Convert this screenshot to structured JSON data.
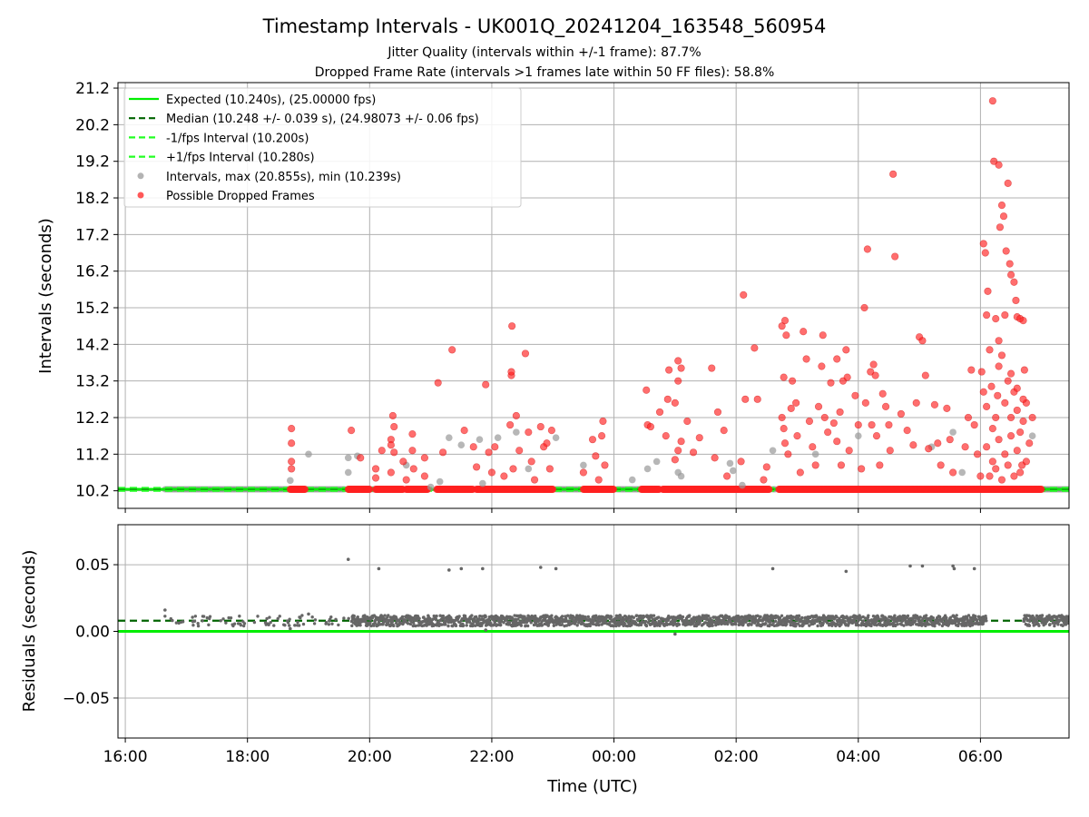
{
  "title": "Timestamp Intervals - UK001Q_20241204_163548_560954",
  "subtitle_1": "Jitter Quality (intervals within +/-1 frame): 87.7%",
  "subtitle_2": "Dropped Frame Rate (intervals >1 frames late within 50 FF files): 58.8%",
  "colors": {
    "expected": "#00ee00",
    "median": "#006400",
    "fps_band": "#22ff22",
    "intervals": "#999999",
    "dropped": "#ff2020",
    "residual_points": "#666666",
    "grid": "#b0b0b0"
  },
  "chart_data": [
    {
      "type": "scatter",
      "name": "intervals-panel",
      "xlabel": "",
      "ylabel": "Intervals (seconds)",
      "x_range_hours": [
        15.88,
        31.45
      ],
      "x_ticks": [
        "16:00",
        "18:00",
        "20:00",
        "22:00",
        "00:00",
        "02:00",
        "04:00",
        "06:00"
      ],
      "x_tick_hours": [
        16,
        18,
        20,
        22,
        24,
        26,
        28,
        30
      ],
      "ylim": [
        9.72,
        21.35
      ],
      "y_ticks": [
        10.2,
        11.2,
        12.2,
        13.2,
        14.2,
        15.2,
        16.2,
        17.2,
        18.2,
        19.2,
        20.2,
        21.2
      ],
      "y_tick_labels": [
        "10.2",
        "11.2",
        "12.2",
        "13.2",
        "14.2",
        "15.2",
        "16.2",
        "17.2",
        "18.2",
        "19.2",
        "20.2",
        "21.2"
      ],
      "grid": true,
      "legend_position": "upper-left",
      "legend": [
        {
          "label": "Expected (10.240s), (25.00000 fps)",
          "style": "solid",
          "color": "#00ee00"
        },
        {
          "label": "Median (10.248 +/- 0.039 s), (24.98073 +/- 0.06 fps)",
          "style": "dashed",
          "color": "#006400"
        },
        {
          "label": "-1/fps Interval (10.200s)",
          "style": "dashed",
          "color": "#22ff22"
        },
        {
          "label": "+1/fps Interval (10.280s)",
          "style": "dashed",
          "color": "#22ff22"
        },
        {
          "label": "Intervals, max (20.855s), min (10.239s)",
          "style": "marker",
          "color": "#999999"
        },
        {
          "label": "Possible Dropped Frames",
          "style": "marker",
          "color": "#ff2020"
        }
      ],
      "reference_lines": [
        {
          "name": "Expected",
          "y": 10.24
        },
        {
          "name": "Median",
          "y": 10.248
        },
        {
          "name": "-1/fps Interval",
          "y": 10.2
        },
        {
          "name": "+1/fps Interval",
          "y": 10.28
        }
      ],
      "baseline_segments": [
        [
          16.65,
          18.7
        ],
        [
          18.95,
          19.6
        ],
        [
          20.05,
          20.1
        ],
        [
          23.05,
          23.45
        ],
        [
          24.05,
          24.45
        ],
        [
          26.6,
          26.65
        ],
        [
          31.0,
          31.45
        ]
      ],
      "dropped_baseline_segments": [
        [
          18.7,
          18.95
        ],
        [
          19.65,
          20.0
        ],
        [
          20.1,
          20.55
        ],
        [
          20.6,
          20.95
        ],
        [
          21.1,
          21.7
        ],
        [
          21.75,
          23.0
        ],
        [
          23.5,
          24.0
        ],
        [
          24.45,
          24.75
        ],
        [
          24.8,
          26.55
        ],
        [
          26.7,
          31.0
        ]
      ],
      "intervals_points": [
        [
          18.7,
          10.48
        ],
        [
          19.0,
          11.2
        ],
        [
          19.65,
          11.1
        ],
        [
          19.65,
          10.7
        ],
        [
          19.8,
          11.15
        ],
        [
          20.6,
          10.9
        ],
        [
          21.0,
          10.3
        ],
        [
          21.15,
          10.45
        ],
        [
          21.3,
          11.65
        ],
        [
          21.5,
          11.45
        ],
        [
          21.8,
          11.6
        ],
        [
          21.85,
          10.4
        ],
        [
          22.1,
          11.65
        ],
        [
          22.4,
          11.8
        ],
        [
          22.6,
          10.8
        ],
        [
          23.05,
          11.65
        ],
        [
          23.5,
          10.9
        ],
        [
          24.3,
          10.5
        ],
        [
          24.55,
          10.8
        ],
        [
          24.7,
          11.0
        ],
        [
          25.05,
          10.7
        ],
        [
          25.1,
          10.6
        ],
        [
          25.9,
          10.95
        ],
        [
          25.95,
          10.75
        ],
        [
          26.1,
          10.35
        ],
        [
          26.6,
          11.3
        ],
        [
          27.3,
          11.2
        ],
        [
          28.0,
          11.7
        ],
        [
          29.2,
          11.4
        ],
        [
          29.55,
          11.8
        ],
        [
          29.7,
          10.7
        ],
        [
          30.85,
          11.7
        ]
      ],
      "dropped_points": [
        [
          18.72,
          11.9
        ],
        [
          18.72,
          11.5
        ],
        [
          18.72,
          11.0
        ],
        [
          18.72,
          10.8
        ],
        [
          19.7,
          11.85
        ],
        [
          19.85,
          11.1
        ],
        [
          20.1,
          10.8
        ],
        [
          20.1,
          10.55
        ],
        [
          20.2,
          11.3
        ],
        [
          20.35,
          11.6
        ],
        [
          20.35,
          10.7
        ],
        [
          20.4,
          11.25
        ],
        [
          20.35,
          11.45
        ],
        [
          20.4,
          11.95
        ],
        [
          20.38,
          12.25
        ],
        [
          20.55,
          11.0
        ],
        [
          20.6,
          10.5
        ],
        [
          20.7,
          11.75
        ],
        [
          20.7,
          11.3
        ],
        [
          20.72,
          10.8
        ],
        [
          20.9,
          11.1
        ],
        [
          20.9,
          10.6
        ],
        [
          21.12,
          13.15
        ],
        [
          21.2,
          11.25
        ],
        [
          21.35,
          14.05
        ],
        [
          21.55,
          11.85
        ],
        [
          21.7,
          11.4
        ],
        [
          21.75,
          10.85
        ],
        [
          21.95,
          11.25
        ],
        [
          21.9,
          13.1
        ],
        [
          22.0,
          10.7
        ],
        [
          22.05,
          11.4
        ],
        [
          22.2,
          10.6
        ],
        [
          22.3,
          12.0
        ],
        [
          22.32,
          13.35
        ],
        [
          22.32,
          13.45
        ],
        [
          22.33,
          14.7
        ],
        [
          22.35,
          10.8
        ],
        [
          22.4,
          12.25
        ],
        [
          22.45,
          11.3
        ],
        [
          22.55,
          13.95
        ],
        [
          22.6,
          11.8
        ],
        [
          22.65,
          11.0
        ],
        [
          22.7,
          10.5
        ],
        [
          22.8,
          11.95
        ],
        [
          22.85,
          11.4
        ],
        [
          22.9,
          11.5
        ],
        [
          22.95,
          10.8
        ],
        [
          22.98,
          11.85
        ],
        [
          23.5,
          10.7
        ],
        [
          23.65,
          11.6
        ],
        [
          23.7,
          11.15
        ],
        [
          23.75,
          10.5
        ],
        [
          23.8,
          11.7
        ],
        [
          23.82,
          12.1
        ],
        [
          23.85,
          10.9
        ],
        [
          24.53,
          12.95
        ],
        [
          24.55,
          12.0
        ],
        [
          24.6,
          11.95
        ],
        [
          24.75,
          12.35
        ],
        [
          24.85,
          11.7
        ],
        [
          24.88,
          12.7
        ],
        [
          24.9,
          13.5
        ],
        [
          25.0,
          12.6
        ],
        [
          25.05,
          13.2
        ],
        [
          25.05,
          13.75
        ],
        [
          25.1,
          13.55
        ],
        [
          25.05,
          11.3
        ],
        [
          25.1,
          11.55
        ],
        [
          25.0,
          11.05
        ],
        [
          25.2,
          12.1
        ],
        [
          25.3,
          11.25
        ],
        [
          25.4,
          11.65
        ],
        [
          25.6,
          13.55
        ],
        [
          25.7,
          12.35
        ],
        [
          25.65,
          11.1
        ],
        [
          25.8,
          11.85
        ],
        [
          25.85,
          10.6
        ],
        [
          26.08,
          11.0
        ],
        [
          26.12,
          15.55
        ],
        [
          26.15,
          12.7
        ],
        [
          26.3,
          14.1
        ],
        [
          26.35,
          12.7
        ],
        [
          26.45,
          10.5
        ],
        [
          26.5,
          10.85
        ],
        [
          26.75,
          14.7
        ],
        [
          26.78,
          13.3
        ],
        [
          26.8,
          14.85
        ],
        [
          26.82,
          14.45
        ],
        [
          26.75,
          12.2
        ],
        [
          26.78,
          11.9
        ],
        [
          26.8,
          11.5
        ],
        [
          26.85,
          11.2
        ],
        [
          26.9,
          12.45
        ],
        [
          26.92,
          13.2
        ],
        [
          26.98,
          12.6
        ],
        [
          27.0,
          11.7
        ],
        [
          27.05,
          10.7
        ],
        [
          27.1,
          14.55
        ],
        [
          27.15,
          13.8
        ],
        [
          27.2,
          12.1
        ],
        [
          27.25,
          11.4
        ],
        [
          27.3,
          10.9
        ],
        [
          27.35,
          12.5
        ],
        [
          27.4,
          13.6
        ],
        [
          27.42,
          14.45
        ],
        [
          27.45,
          12.2
        ],
        [
          27.5,
          11.8
        ],
        [
          27.55,
          13.15
        ],
        [
          27.6,
          12.05
        ],
        [
          27.65,
          13.8
        ],
        [
          27.65,
          11.55
        ],
        [
          27.7,
          12.35
        ],
        [
          27.72,
          10.9
        ],
        [
          27.75,
          13.2
        ],
        [
          27.8,
          14.05
        ],
        [
          27.82,
          13.3
        ],
        [
          27.85,
          11.3
        ],
        [
          27.95,
          12.8
        ],
        [
          28.0,
          12.0
        ],
        [
          28.05,
          10.8
        ],
        [
          28.1,
          15.2
        ],
        [
          28.12,
          12.6
        ],
        [
          28.15,
          16.8
        ],
        [
          28.2,
          13.45
        ],
        [
          28.22,
          12.0
        ],
        [
          28.25,
          13.65
        ],
        [
          28.28,
          13.35
        ],
        [
          28.3,
          11.7
        ],
        [
          28.35,
          10.9
        ],
        [
          28.4,
          12.85
        ],
        [
          28.45,
          12.5
        ],
        [
          28.5,
          12.0
        ],
        [
          28.52,
          11.3
        ],
        [
          28.57,
          18.85
        ],
        [
          28.6,
          16.6
        ],
        [
          28.7,
          12.3
        ],
        [
          28.8,
          11.85
        ],
        [
          28.9,
          11.45
        ],
        [
          28.95,
          12.6
        ],
        [
          29.0,
          14.4
        ],
        [
          29.05,
          14.3
        ],
        [
          29.1,
          13.35
        ],
        [
          29.15,
          11.35
        ],
        [
          29.25,
          12.55
        ],
        [
          29.3,
          11.5
        ],
        [
          29.35,
          10.9
        ],
        [
          29.45,
          12.45
        ],
        [
          29.5,
          11.6
        ],
        [
          29.55,
          10.7
        ],
        [
          29.75,
          11.4
        ],
        [
          29.8,
          12.2
        ],
        [
          29.85,
          13.5
        ],
        [
          29.9,
          12.0
        ],
        [
          29.95,
          11.2
        ],
        [
          30.0,
          10.6
        ],
        [
          30.02,
          13.45
        ],
        [
          30.05,
          16.95
        ],
        [
          30.08,
          16.7
        ],
        [
          30.1,
          15.0
        ],
        [
          30.12,
          15.65
        ],
        [
          30.15,
          14.05
        ],
        [
          30.18,
          13.05
        ],
        [
          30.2,
          20.85
        ],
        [
          30.22,
          19.2
        ],
        [
          30.25,
          12.2
        ],
        [
          30.3,
          19.1
        ],
        [
          30.32,
          17.4
        ],
        [
          30.35,
          18.0
        ],
        [
          30.38,
          17.7
        ],
        [
          30.42,
          16.75
        ],
        [
          30.45,
          18.6
        ],
        [
          30.48,
          16.4
        ],
        [
          30.5,
          16.1
        ],
        [
          30.55,
          15.9
        ],
        [
          30.58,
          15.4
        ],
        [
          30.6,
          14.95
        ],
        [
          30.65,
          14.9
        ],
        [
          30.7,
          14.85
        ],
        [
          30.4,
          15.0
        ],
        [
          30.3,
          14.3
        ],
        [
          30.35,
          13.9
        ],
        [
          30.45,
          13.2
        ],
        [
          30.05,
          12.9
        ],
        [
          30.1,
          12.5
        ],
        [
          30.2,
          11.9
        ],
        [
          30.28,
          12.8
        ],
        [
          30.4,
          12.6
        ],
        [
          30.5,
          12.2
        ],
        [
          30.55,
          12.9
        ],
        [
          30.6,
          12.4
        ],
        [
          30.65,
          11.8
        ],
        [
          30.7,
          12.1
        ],
        [
          30.72,
          13.5
        ],
        [
          30.1,
          11.4
        ],
        [
          30.2,
          11.0
        ],
        [
          30.3,
          11.6
        ],
        [
          30.4,
          11.2
        ],
        [
          30.5,
          11.7
        ],
        [
          30.6,
          11.3
        ],
        [
          30.68,
          10.9
        ],
        [
          30.75,
          12.6
        ],
        [
          30.8,
          11.5
        ],
        [
          30.85,
          12.2
        ],
        [
          30.75,
          11.0
        ],
        [
          30.15,
          10.6
        ],
        [
          30.25,
          10.8
        ],
        [
          30.35,
          10.5
        ],
        [
          30.45,
          10.9
        ],
        [
          30.55,
          10.6
        ],
        [
          30.65,
          10.7
        ],
        [
          30.7,
          12.7
        ],
        [
          30.6,
          13.0
        ],
        [
          30.5,
          13.4
        ],
        [
          30.3,
          13.6
        ],
        [
          30.25,
          14.9
        ]
      ]
    },
    {
      "type": "scatter",
      "name": "residuals-panel",
      "xlabel": "Time (UTC)",
      "ylabel": "Residuals (seconds)",
      "x_range_hours": [
        15.88,
        31.45
      ],
      "x_ticks": [
        "16:00",
        "18:00",
        "20:00",
        "22:00",
        "00:00",
        "02:00",
        "04:00",
        "06:00"
      ],
      "x_tick_hours": [
        16,
        18,
        20,
        22,
        24,
        26,
        28,
        30
      ],
      "ylim": [
        -0.08,
        0.08
      ],
      "y_ticks": [
        0.05,
        0.0,
        -0.05
      ],
      "y_tick_labels": [
        "0.05",
        "0.00",
        "−0.05"
      ],
      "grid": true,
      "reference_lines": [
        {
          "name": "Expected",
          "y": 0.0
        },
        {
          "name": "Median",
          "y": 0.008
        }
      ],
      "residual_band": {
        "center": 0.008,
        "spread": 0.004,
        "x_segments": [
          [
            16.65,
            19.6
          ],
          [
            19.65,
            30.1
          ],
          [
            30.7,
            31.45
          ]
        ]
      },
      "outlier_points": [
        [
          16.65,
          0.016
        ],
        [
          18.7,
          0.002
        ],
        [
          19.0,
          0.013
        ],
        [
          19.65,
          0.054
        ],
        [
          20.15,
          0.047
        ],
        [
          21.3,
          0.046
        ],
        [
          21.5,
          0.047
        ],
        [
          21.85,
          0.047
        ],
        [
          22.8,
          0.048
        ],
        [
          23.05,
          0.047
        ],
        [
          26.6,
          0.047
        ],
        [
          27.8,
          0.045
        ],
        [
          28.85,
          0.049
        ],
        [
          29.05,
          0.049
        ],
        [
          29.55,
          0.049
        ],
        [
          29.57,
          0.047
        ],
        [
          29.9,
          0.047
        ],
        [
          25.0,
          -0.002
        ],
        [
          21.9,
          0.001
        ]
      ]
    }
  ]
}
